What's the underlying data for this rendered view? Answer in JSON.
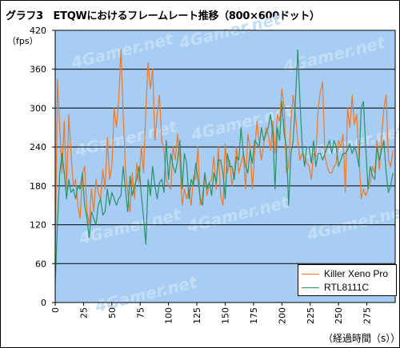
{
  "chart_data": {
    "type": "line",
    "title": "グラフ3　ETQWにおけるフレームレート推移（800×600ドット）",
    "ylabel": "（fps）",
    "xlabel": "（経過時間（s））",
    "ylim": [
      0,
      420
    ],
    "xlim": [
      0,
      300
    ],
    "y_ticks": [
      "0",
      "60",
      "120",
      "180",
      "240",
      "300",
      "360",
      "420"
    ],
    "x_ticks": [
      "0",
      "25",
      "50",
      "75",
      "100",
      "125",
      "150",
      "175",
      "200",
      "225",
      "250",
      "275"
    ],
    "grid": true,
    "legend_position": "bottom-right",
    "colors": {
      "background": "#a7cdf4",
      "grid": "#000000"
    },
    "watermark": "4Gamer.net",
    "series": [
      {
        "name": "Killer Xeno Pro",
        "color": "#f07822",
        "x": [
          0,
          2,
          4,
          6,
          8,
          10,
          12,
          14,
          16,
          18,
          20,
          22,
          24,
          26,
          28,
          30,
          32,
          34,
          36,
          38,
          40,
          42,
          44,
          46,
          48,
          50,
          52,
          54,
          56,
          58,
          60,
          62,
          64,
          66,
          68,
          70,
          72,
          74,
          76,
          78,
          80,
          82,
          84,
          86,
          88,
          90,
          92,
          94,
          96,
          98,
          100,
          102,
          104,
          106,
          108,
          110,
          112,
          114,
          116,
          118,
          120,
          122,
          124,
          126,
          128,
          130,
          132,
          134,
          136,
          138,
          140,
          142,
          144,
          146,
          148,
          150,
          152,
          154,
          156,
          158,
          160,
          162,
          164,
          166,
          168,
          170,
          172,
          174,
          176,
          178,
          180,
          182,
          184,
          186,
          188,
          190,
          192,
          194,
          196,
          198,
          200,
          202,
          204,
          206,
          208,
          210,
          212,
          214,
          216,
          218,
          220,
          222,
          224,
          226,
          228,
          230,
          232,
          234,
          236,
          238,
          240,
          242,
          244,
          246,
          248,
          250,
          252,
          254,
          256,
          258,
          260,
          262,
          264,
          266,
          268,
          270,
          272,
          274,
          276,
          278,
          280,
          282,
          284,
          286,
          288,
          290,
          292,
          294,
          296,
          298
        ],
        "values": [
          60,
          345,
          270,
          200,
          280,
          175,
          290,
          230,
          180,
          190,
          150,
          130,
          200,
          210,
          140,
          120,
          175,
          140,
          190,
          170,
          160,
          205,
          175,
          255,
          190,
          210,
          300,
          270,
          310,
          390,
          290,
          205,
          170,
          140,
          200,
          160,
          215,
          185,
          240,
          200,
          300,
          370,
          330,
          360,
          250,
          290,
          320,
          250,
          235,
          190,
          180,
          175,
          240,
          220,
          260,
          220,
          150,
          175,
          160,
          175,
          150,
          195,
          190,
          240,
          150,
          165,
          200,
          165,
          185,
          190,
          225,
          175,
          240,
          165,
          150,
          245,
          200,
          220,
          180,
          200,
          240,
          200,
          215,
          230,
          175,
          260,
          240,
          175,
          230,
          280,
          245,
          220,
          245,
          270,
          260,
          235,
          280,
          230,
          290,
          280,
          330,
          300,
          200,
          210,
          280,
          320,
          290,
          250,
          220,
          230,
          225,
          215,
          210,
          190,
          230,
          225,
          300,
          325,
          340,
          225,
          210,
          200,
          200,
          210,
          215,
          250,
          240,
          260,
          170,
          300,
          270,
          320,
          275,
          290,
          225,
          160,
          175,
          165,
          175,
          185,
          210,
          200,
          250,
          205,
          255,
          300,
          320,
          220,
          210,
          235
        ]
      },
      {
        "name": "RTL8111C",
        "color": "#2a9268",
        "x": [
          0,
          2,
          4,
          6,
          8,
          10,
          12,
          14,
          16,
          18,
          20,
          22,
          24,
          26,
          28,
          30,
          32,
          34,
          36,
          38,
          40,
          42,
          44,
          46,
          48,
          50,
          52,
          54,
          56,
          58,
          60,
          62,
          64,
          66,
          68,
          70,
          72,
          74,
          76,
          78,
          80,
          82,
          84,
          86,
          88,
          90,
          92,
          94,
          96,
          98,
          100,
          102,
          104,
          106,
          108,
          110,
          112,
          114,
          116,
          118,
          120,
          122,
          124,
          126,
          128,
          130,
          132,
          134,
          136,
          138,
          140,
          142,
          144,
          146,
          148,
          150,
          152,
          154,
          156,
          158,
          160,
          162,
          164,
          166,
          168,
          170,
          172,
          174,
          176,
          178,
          180,
          182,
          184,
          186,
          188,
          190,
          192,
          194,
          196,
          198,
          200,
          202,
          204,
          206,
          208,
          210,
          212,
          214,
          216,
          218,
          220,
          222,
          224,
          226,
          228,
          230,
          232,
          234,
          236,
          238,
          240,
          242,
          244,
          246,
          248,
          250,
          252,
          254,
          256,
          258,
          260,
          262,
          264,
          266,
          268,
          270,
          272,
          274,
          276,
          278,
          280,
          282,
          284,
          286,
          288,
          290,
          292,
          294,
          296,
          298
        ],
        "values": [
          30,
          120,
          200,
          230,
          200,
          160,
          190,
          170,
          175,
          160,
          180,
          175,
          200,
          150,
          130,
          100,
          140,
          130,
          120,
          150,
          160,
          135,
          140,
          175,
          150,
          170,
          160,
          150,
          160,
          165,
          210,
          175,
          140,
          195,
          165,
          180,
          190,
          210,
          165,
          130,
          90,
          190,
          165,
          210,
          180,
          160,
          185,
          190,
          170,
          250,
          190,
          230,
          210,
          200,
          220,
          250,
          175,
          230,
          215,
          160,
          190,
          180,
          215,
          190,
          160,
          150,
          200,
          175,
          185,
          165,
          200,
          185,
          220,
          220,
          200,
          160,
          230,
          210,
          210,
          190,
          225,
          220,
          270,
          230,
          210,
          200,
          235,
          215,
          250,
          245,
          240,
          270,
          250,
          260,
          270,
          290,
          260,
          175,
          270,
          250,
          310,
          260,
          240,
          150,
          230,
          250,
          310,
          390,
          310,
          240,
          210,
          240,
          240,
          215,
          250,
          210,
          230,
          230,
          220,
          230,
          240,
          250,
          230,
          250,
          240,
          210,
          220,
          230,
          230,
          235,
          245,
          230,
          240,
          230,
          210,
          300,
          310,
          240,
          175,
          210,
          195,
          190,
          240,
          220,
          235,
          250,
          200,
          170,
          180,
          200
        ]
      }
    ]
  }
}
